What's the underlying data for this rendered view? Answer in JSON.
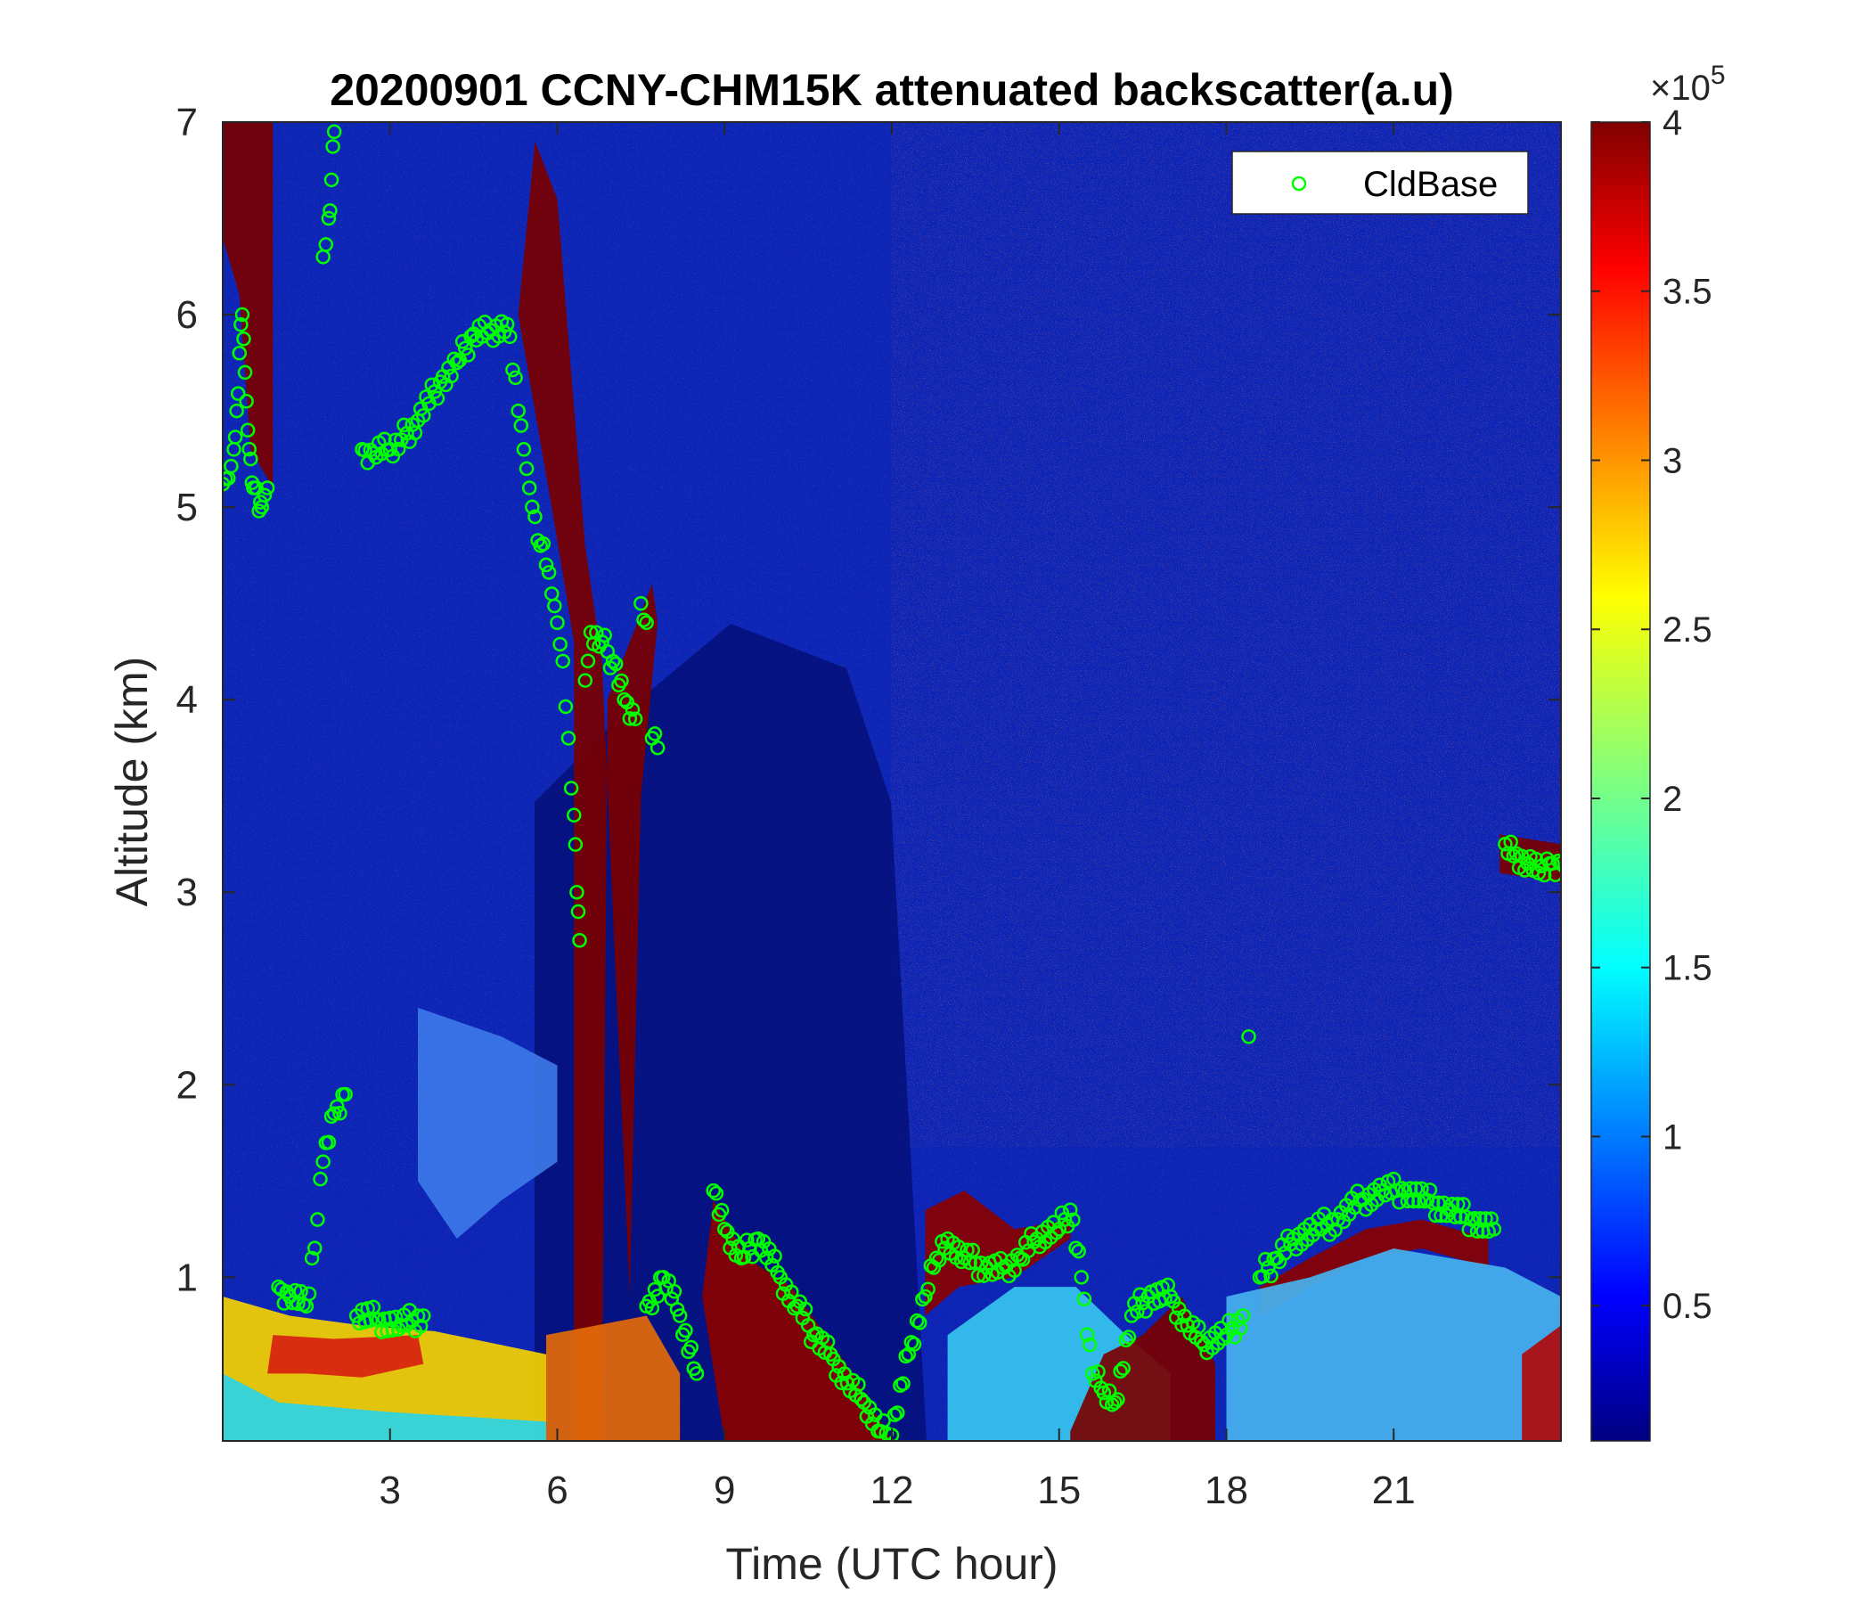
{
  "chart_data": {
    "type": "heatmap",
    "title": "20200901 CCNY-CHM15K attenuated backscatter(a.u)",
    "xlabel": "Time (UTC hour)",
    "ylabel": "Altitude (km)",
    "xlim": [
      0,
      24
    ],
    "ylim": [
      0.15,
      7
    ],
    "xticks": [
      3,
      6,
      9,
      12,
      15,
      18,
      21
    ],
    "xtick_labels": [
      "3",
      "6",
      "9",
      "12",
      "15",
      "18",
      "21"
    ],
    "yticks": [
      1,
      2,
      3,
      4,
      5,
      6,
      7
    ],
    "ytick_labels": [
      "1",
      "2",
      "3",
      "4",
      "5",
      "6",
      "7"
    ],
    "colorbar": {
      "colormap": "jet",
      "range": [
        0.1,
        4
      ],
      "ticks": [
        0.5,
        1,
        1.5,
        2,
        2.5,
        3,
        3.5,
        4
      ],
      "tick_labels": [
        "0.5",
        "1",
        "1.5",
        "2",
        "2.5",
        "3",
        "3.5",
        "4"
      ],
      "exponent_prefix": "×10",
      "exponent": "5"
    },
    "legend": {
      "position": "top-right",
      "entries": [
        "CldBase"
      ]
    },
    "series": [
      {
        "name": "CldBase",
        "marker": "circle-open",
        "color": "#00ff00",
        "points": [
          [
            0.0,
            5.12
          ],
          [
            0.1,
            5.15
          ],
          [
            0.2,
            5.3
          ],
          [
            0.25,
            5.5
          ],
          [
            0.3,
            5.8
          ],
          [
            0.35,
            6.0
          ],
          [
            0.4,
            5.7
          ],
          [
            0.45,
            5.4
          ],
          [
            0.5,
            5.25
          ],
          [
            0.55,
            5.1
          ],
          [
            0.65,
            4.98
          ],
          [
            0.7,
            5.0
          ],
          [
            0.8,
            5.1
          ],
          [
            1.8,
            6.3
          ],
          [
            1.9,
            6.5
          ],
          [
            1.95,
            6.7
          ],
          [
            2.0,
            6.95
          ],
          [
            2.5,
            5.3
          ],
          [
            2.7,
            5.28
          ],
          [
            3.0,
            5.3
          ],
          [
            3.2,
            5.35
          ],
          [
            3.5,
            5.45
          ],
          [
            3.9,
            5.65
          ],
          [
            4.2,
            5.75
          ],
          [
            4.5,
            5.9
          ],
          [
            4.8,
            5.92
          ],
          [
            5.1,
            5.95
          ],
          [
            5.3,
            5.5
          ],
          [
            5.4,
            5.3
          ],
          [
            5.5,
            5.1
          ],
          [
            5.6,
            4.95
          ],
          [
            5.7,
            4.8
          ],
          [
            5.8,
            4.7
          ],
          [
            5.9,
            4.55
          ],
          [
            6.0,
            4.4
          ],
          [
            6.1,
            4.2
          ],
          [
            6.2,
            3.8
          ],
          [
            6.3,
            3.4
          ],
          [
            6.35,
            3.0
          ],
          [
            6.4,
            2.75
          ],
          [
            6.5,
            4.1
          ],
          [
            6.6,
            4.35
          ],
          [
            6.8,
            4.3
          ],
          [
            7.0,
            4.2
          ],
          [
            7.2,
            4.0
          ],
          [
            7.4,
            3.9
          ],
          [
            7.5,
            4.5
          ],
          [
            7.6,
            4.4
          ],
          [
            7.7,
            3.8
          ],
          [
            7.8,
            3.75
          ],
          [
            1.0,
            0.95
          ],
          [
            1.2,
            0.9
          ],
          [
            1.5,
            0.85
          ],
          [
            1.7,
            1.3
          ],
          [
            1.8,
            1.6
          ],
          [
            2.0,
            1.85
          ],
          [
            2.2,
            1.95
          ],
          [
            2.4,
            0.8
          ],
          [
            2.8,
            0.78
          ],
          [
            3.2,
            0.75
          ],
          [
            3.6,
            0.8
          ],
          [
            7.6,
            0.85
          ],
          [
            7.9,
            1.0
          ],
          [
            8.2,
            0.8
          ],
          [
            8.5,
            0.5
          ],
          [
            8.8,
            1.45
          ],
          [
            9.0,
            1.25
          ],
          [
            9.3,
            1.1
          ],
          [
            9.6,
            1.2
          ],
          [
            10.0,
            1.0
          ],
          [
            10.3,
            0.85
          ],
          [
            10.6,
            0.7
          ],
          [
            10.9,
            0.6
          ],
          [
            11.2,
            0.45
          ],
          [
            11.5,
            0.35
          ],
          [
            11.8,
            0.2
          ],
          [
            12.0,
            0.18
          ],
          [
            12.3,
            0.6
          ],
          [
            12.6,
            0.9
          ],
          [
            12.8,
            1.1
          ],
          [
            13.0,
            1.2
          ],
          [
            13.3,
            1.1
          ],
          [
            13.7,
            1.05
          ],
          [
            14.0,
            1.05
          ],
          [
            14.3,
            1.1
          ],
          [
            14.6,
            1.2
          ],
          [
            15.0,
            1.25
          ],
          [
            15.2,
            1.35
          ],
          [
            15.4,
            1.0
          ],
          [
            15.6,
            0.5
          ],
          [
            15.8,
            0.4
          ],
          [
            16.0,
            0.35
          ],
          [
            16.3,
            0.8
          ],
          [
            16.6,
            0.9
          ],
          [
            17.0,
            0.9
          ],
          [
            17.3,
            0.75
          ],
          [
            17.6,
            0.65
          ],
          [
            18.0,
            0.7
          ],
          [
            18.3,
            0.8
          ],
          [
            18.4,
            2.25
          ],
          [
            18.6,
            1.0
          ],
          [
            18.9,
            1.1
          ],
          [
            19.2,
            1.2
          ],
          [
            19.6,
            1.25
          ],
          [
            20.0,
            1.3
          ],
          [
            20.4,
            1.4
          ],
          [
            20.8,
            1.45
          ],
          [
            21.2,
            1.45
          ],
          [
            21.6,
            1.4
          ],
          [
            22.0,
            1.35
          ],
          [
            22.4,
            1.3
          ],
          [
            22.8,
            1.25
          ],
          [
            23.0,
            3.25
          ],
          [
            23.2,
            3.2
          ],
          [
            23.4,
            3.15
          ],
          [
            23.6,
            3.1
          ],
          [
            23.8,
            3.15
          ],
          [
            24.0,
            3.15
          ]
        ]
      }
    ]
  }
}
